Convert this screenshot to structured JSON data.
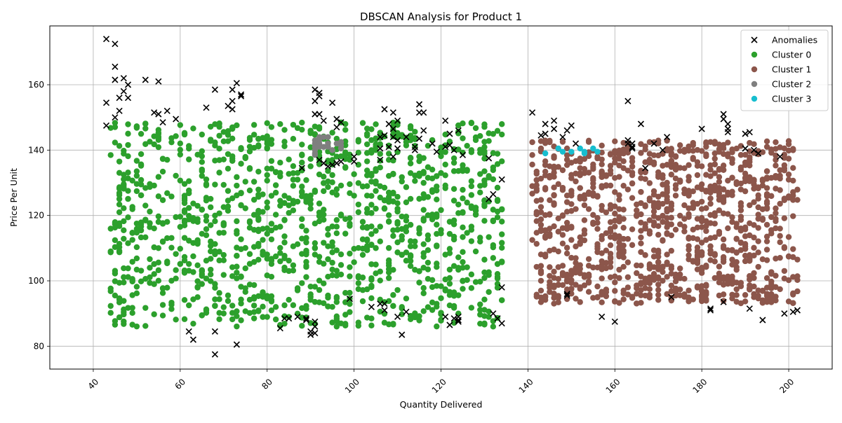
{
  "chart_data": {
    "type": "scatter",
    "title": "DBSCAN Analysis for Product 1",
    "xlabel": "Quantity Delivered",
    "ylabel": "Price Per Unit",
    "xlim": [
      30,
      210
    ],
    "ylim": [
      73,
      178
    ],
    "xticks": [
      40,
      60,
      80,
      100,
      120,
      140,
      160,
      180,
      200
    ],
    "yticks": [
      80,
      100,
      120,
      140,
      160
    ],
    "x_tick_rotation": 45,
    "grid": true,
    "legend_position": "top-right",
    "series": [
      {
        "name": "Anomalies",
        "marker": "x",
        "color": "#000000",
        "points": [
          [
            43,
            174
          ],
          [
            45,
            172.5
          ],
          [
            45,
            165.5
          ],
          [
            45,
            161.5
          ],
          [
            47,
            162
          ],
          [
            43,
            154.5
          ],
          [
            46,
            156
          ],
          [
            48,
            156
          ],
          [
            48,
            160
          ],
          [
            47,
            158
          ],
          [
            43,
            147.5
          ],
          [
            45,
            150
          ],
          [
            46,
            152
          ],
          [
            52,
            161.5
          ],
          [
            55,
            161
          ],
          [
            54,
            151.5
          ],
          [
            55,
            151
          ],
          [
            57,
            152
          ],
          [
            59,
            149.5
          ],
          [
            56,
            148.5
          ],
          [
            66,
            153
          ],
          [
            68,
            158.5
          ],
          [
            71,
            153.5
          ],
          [
            72,
            152.5
          ],
          [
            72,
            155
          ],
          [
            72,
            158.5
          ],
          [
            73,
            160.5
          ],
          [
            74,
            157
          ],
          [
            74,
            156.5
          ],
          [
            88,
            134.5
          ],
          [
            91,
            158.5
          ],
          [
            92,
            157.5
          ],
          [
            92,
            156.5
          ],
          [
            91,
            155
          ],
          [
            95,
            154.5
          ],
          [
            91,
            151
          ],
          [
            92,
            151
          ],
          [
            93,
            149
          ],
          [
            96,
            149.5
          ],
          [
            97,
            148.5
          ],
          [
            96,
            147
          ],
          [
            93,
            136
          ],
          [
            92,
            137
          ],
          [
            95,
            135.5
          ],
          [
            94,
            135
          ],
          [
            96,
            136
          ],
          [
            97,
            136.5
          ],
          [
            100,
            138
          ],
          [
            100,
            136.5
          ],
          [
            107,
            152.5
          ],
          [
            109,
            151.5
          ],
          [
            110,
            149
          ],
          [
            108,
            148
          ],
          [
            109,
            146.5
          ],
          [
            106,
            144
          ],
          [
            107,
            144.5
          ],
          [
            109,
            144
          ],
          [
            110,
            143
          ],
          [
            112,
            144
          ],
          [
            108,
            141
          ],
          [
            110,
            140.5
          ],
          [
            106,
            140.5
          ],
          [
            109,
            138
          ],
          [
            106,
            137
          ],
          [
            115,
            154
          ],
          [
            115,
            151.5
          ],
          [
            116,
            151.5
          ],
          [
            116,
            146
          ],
          [
            115,
            143.5
          ],
          [
            118,
            142
          ],
          [
            114,
            141
          ],
          [
            114,
            140
          ],
          [
            119,
            139.5
          ],
          [
            121,
            149
          ],
          [
            122,
            145
          ],
          [
            124,
            146
          ],
          [
            122,
            141.5
          ],
          [
            121,
            141
          ],
          [
            123,
            140
          ],
          [
            125,
            138.5
          ],
          [
            131,
            137.5
          ],
          [
            132,
            126.5
          ],
          [
            131,
            125
          ],
          [
            134,
            131
          ],
          [
            121,
            89
          ],
          [
            122,
            86.5
          ],
          [
            124,
            88
          ],
          [
            124,
            87.5
          ],
          [
            124,
            89
          ],
          [
            123,
            88.5
          ],
          [
            132,
            90
          ],
          [
            133,
            88.5
          ],
          [
            134,
            87
          ],
          [
            134,
            98
          ],
          [
            111,
            83.5
          ],
          [
            110,
            89
          ],
          [
            112,
            90.5
          ],
          [
            107,
            91
          ],
          [
            106,
            93
          ],
          [
            107,
            93
          ],
          [
            104,
            92
          ],
          [
            99,
            94.5
          ],
          [
            90,
            83.5
          ],
          [
            90,
            84.5
          ],
          [
            91,
            84
          ],
          [
            91,
            87.5
          ],
          [
            91,
            86
          ],
          [
            89,
            88.5
          ],
          [
            89,
            88
          ],
          [
            87,
            89
          ],
          [
            85,
            88.5
          ],
          [
            84,
            88.5
          ],
          [
            83,
            85.5
          ],
          [
            62,
            84.5
          ],
          [
            63,
            82
          ],
          [
            68,
            84.5
          ],
          [
            68,
            77.5
          ],
          [
            73,
            80.5
          ],
          [
            141,
            151.5
          ],
          [
            143,
            144.5
          ],
          [
            144,
            148
          ],
          [
            144,
            145
          ],
          [
            146,
            149
          ],
          [
            146,
            146.5
          ],
          [
            148,
            144
          ],
          [
            149,
            146
          ],
          [
            150,
            147.5
          ],
          [
            151,
            142
          ],
          [
            149,
            96
          ],
          [
            149,
            95.5
          ],
          [
            157,
            89
          ],
          [
            160,
            87.5
          ],
          [
            163,
            155
          ],
          [
            163,
            143
          ],
          [
            163,
            142
          ],
          [
            164,
            142
          ],
          [
            164,
            141
          ],
          [
            164,
            140.5
          ],
          [
            166,
            148
          ],
          [
            167,
            134.5
          ],
          [
            169,
            142
          ],
          [
            171,
            140
          ],
          [
            172,
            144
          ],
          [
            173,
            95
          ],
          [
            180,
            146.5
          ],
          [
            182,
            91
          ],
          [
            182,
            91.5
          ],
          [
            185,
            151
          ],
          [
            185,
            149.5
          ],
          [
            186,
            148
          ],
          [
            186,
            145.5
          ],
          [
            186,
            146.5
          ],
          [
            185,
            93.5
          ],
          [
            190,
            145
          ],
          [
            190,
            140.5
          ],
          [
            191,
            145.5
          ],
          [
            192,
            140
          ],
          [
            193,
            139
          ],
          [
            194,
            88
          ],
          [
            191,
            91.5
          ],
          [
            198,
            138
          ],
          [
            199,
            90
          ],
          [
            201,
            90.5
          ],
          [
            202,
            91
          ]
        ]
      },
      {
        "name": "Cluster 0",
        "marker": "o",
        "color": "#2ca02c",
        "region": {
          "x": [
            43.5,
            134
          ],
          "y": [
            86,
            148.5
          ],
          "count": 1300,
          "seed": 11
        }
      },
      {
        "name": "Cluster 1",
        "marker": "o",
        "color": "#8c564b",
        "region": {
          "x": [
            141,
            202
          ],
          "y": [
            93,
            143
          ],
          "count": 1100,
          "seed": 23
        }
      },
      {
        "name": "Cluster 2",
        "marker": "o",
        "color": "#7f7f7f",
        "points": [
          [
            91,
            143
          ],
          [
            91,
            142
          ],
          [
            91,
            141
          ],
          [
            91,
            140
          ],
          [
            91,
            139
          ],
          [
            92,
            144
          ],
          [
            92,
            143
          ],
          [
            92,
            142
          ],
          [
            92,
            141
          ],
          [
            93,
            144
          ],
          [
            93,
            141
          ],
          [
            94,
            144
          ],
          [
            94,
            142
          ],
          [
            94,
            141
          ],
          [
            95,
            140
          ],
          [
            96,
            142
          ],
          [
            97,
            142.5
          ],
          [
            97,
            141.5
          ],
          [
            97,
            140.5
          ],
          [
            91,
            138.5
          ]
        ]
      },
      {
        "name": "Cluster 3",
        "marker": "o",
        "color": "#17becf",
        "points": [
          [
            144,
            139
          ],
          [
            147,
            140.5
          ],
          [
            148,
            139.5
          ],
          [
            150,
            139.5
          ],
          [
            152,
            140.5
          ],
          [
            153,
            139.5
          ],
          [
            153,
            139
          ],
          [
            155,
            140.5
          ],
          [
            156,
            139.5
          ]
        ]
      }
    ]
  }
}
